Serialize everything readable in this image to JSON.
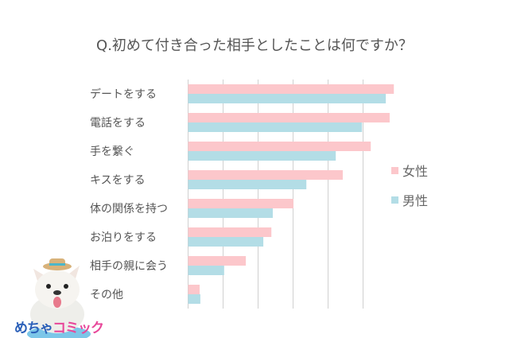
{
  "chart_data": {
    "type": "bar",
    "orientation": "horizontal",
    "title": "Q.初めて付き合った相手としたことは何ですか？",
    "categories": [
      "デートをする",
      "電話をする",
      "手を繋ぐ",
      "キスをする",
      "体の関係を持つ",
      "お泊りをする",
      "相手の親に会う",
      "その他"
    ],
    "series": [
      {
        "name": "女性",
        "color": "#fcc7cb",
        "values": [
          58.8,
          57.6,
          52.2,
          44.2,
          30.1,
          23.8,
          16.5,
          3.3
        ]
      },
      {
        "name": "男性",
        "color": "#b3dde6",
        "values": [
          56.5,
          49.7,
          42.2,
          33.8,
          24.2,
          21.5,
          10.3,
          3.5
        ]
      }
    ],
    "xlim": [
      0,
      60
    ],
    "grid": true,
    "tick_labels_shown": false,
    "legend_position": "right"
  },
  "logo": {
    "text_part1": "めちゃ",
    "text_part2": "コミック"
  }
}
